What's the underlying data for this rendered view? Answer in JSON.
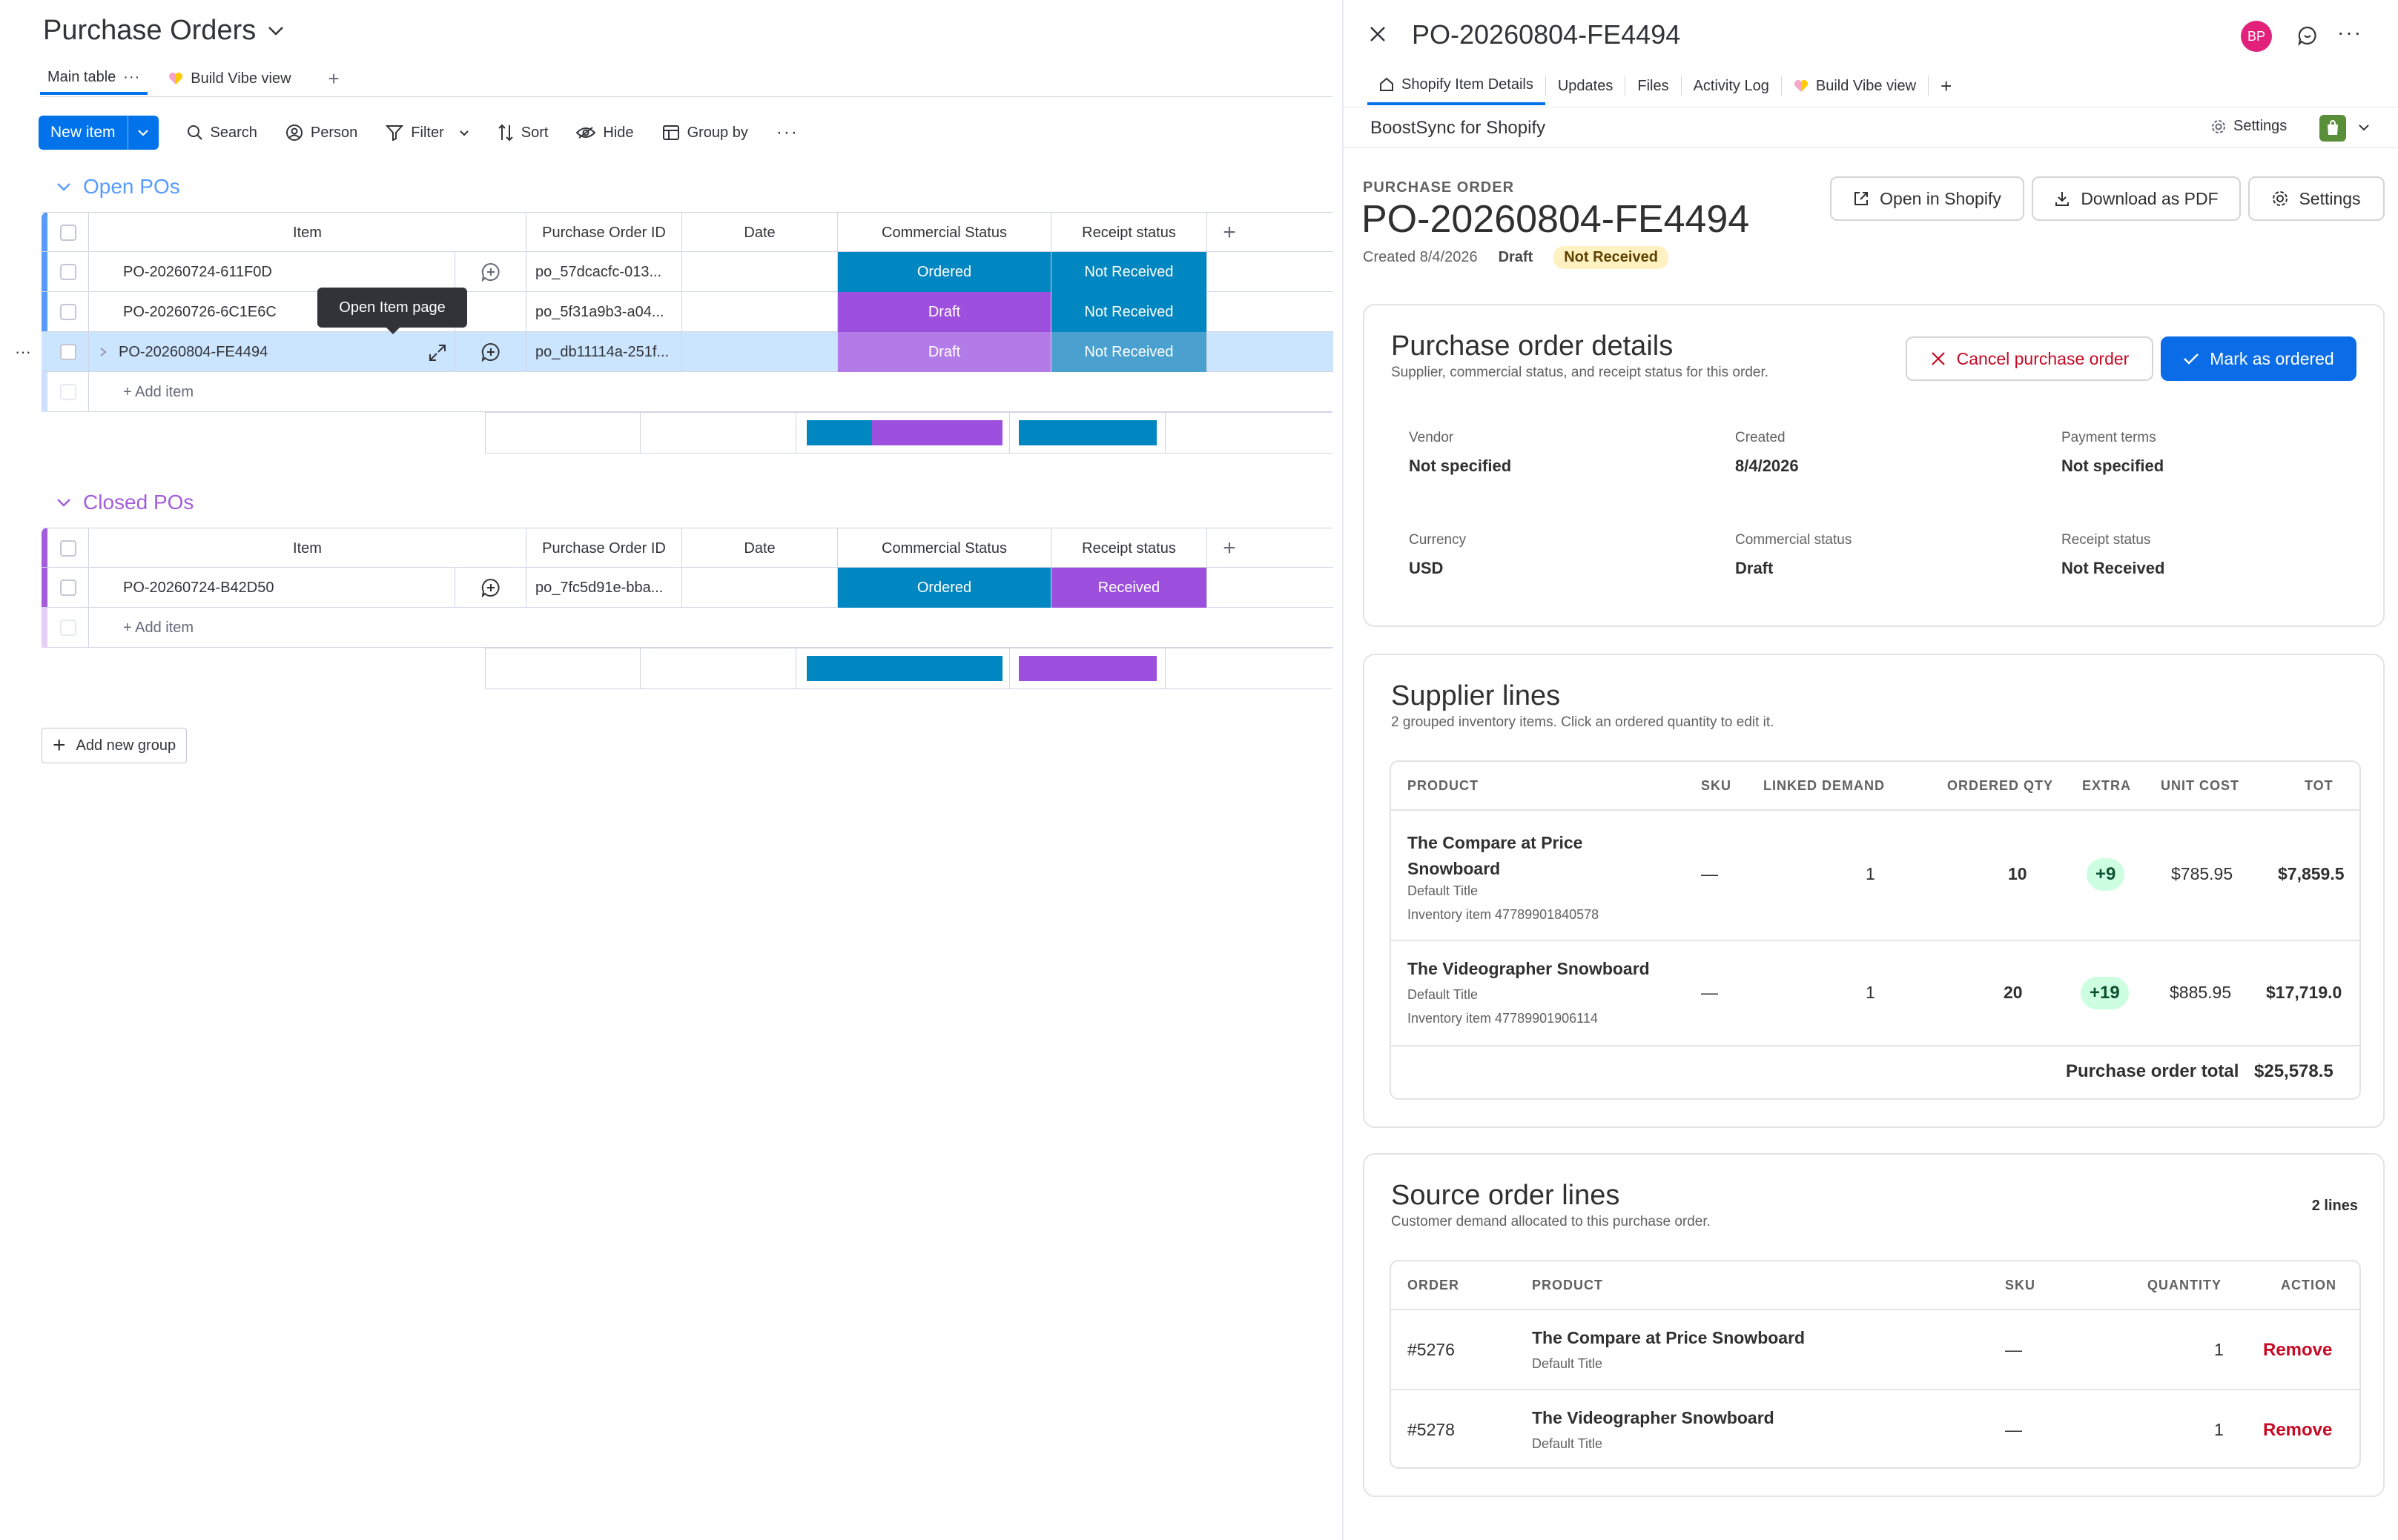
{
  "board": {
    "title": "Purchase Orders",
    "views": [
      {
        "label": "Main table"
      },
      {
        "label": "Build Vibe view"
      }
    ],
    "toolbar": {
      "new_item": "New item",
      "search": "Search",
      "person": "Person",
      "filter": "Filter",
      "sort": "Sort",
      "hide": "Hide",
      "group_by": "Group by"
    },
    "columns": [
      "Item",
      "Purchase Order ID",
      "Date",
      "Commercial Status",
      "Receipt status"
    ],
    "add_item": "+ Add item",
    "add_new_group": "Add new group",
    "tooltip": "Open Item page",
    "groups": [
      {
        "title": "Open POs",
        "color": "#579bfc",
        "rows": [
          {
            "item": "PO-20260724-611F0D",
            "po_id": "po_57dcacfc-013...",
            "date": "",
            "commercial": "Ordered",
            "receipt": "Not Received"
          },
          {
            "item": "PO-20260726-6C1E6C",
            "po_id": "po_5f31a9b3-a04...",
            "date": "",
            "commercial": "Draft",
            "receipt": "Not Received"
          },
          {
            "item": "PO-20260804-FE4494",
            "po_id": "po_db11114a-251f...",
            "date": "",
            "commercial": "Draft",
            "receipt": "Not Received"
          }
        ]
      },
      {
        "title": "Closed POs",
        "color": "#a25ddc",
        "rows": [
          {
            "item": "PO-20260724-B42D50",
            "po_id": "po_7fc5d91e-bba...",
            "date": "",
            "commercial": "Ordered",
            "receipt": "Received"
          }
        ]
      }
    ],
    "status_colors": {
      "ordered": "#0086c0",
      "draft": "#9d50dd",
      "not_received": "#0086c0",
      "received": "#9d50dd"
    }
  },
  "panel": {
    "title": "PO-20260804-FE4494",
    "avatar": "BP",
    "tabs": [
      {
        "label": "Shopify Item Details"
      },
      {
        "label": "Updates"
      },
      {
        "label": "Files"
      },
      {
        "label": "Activity Log"
      },
      {
        "label": "Build Vibe view"
      }
    ],
    "app_name": "BoostSync for Shopify",
    "app_settings": "Settings",
    "po_eyebrow": "PURCHASE ORDER",
    "po_number": "PO-20260804-FE4494",
    "created_line": "Created 8/4/2026",
    "draft_badge": "Draft",
    "receipt_badge": "Not Received",
    "actions": {
      "open_shopify": "Open in Shopify",
      "download_pdf": "Download as PDF",
      "settings": "Settings"
    },
    "details": {
      "title": "Purchase order details",
      "subtitle": "Supplier, commercial status, and receipt status for this order.",
      "cancel": "Cancel purchase order",
      "mark_ordered": "Mark as ordered",
      "fields": [
        {
          "label": "Vendor",
          "value": "Not specified"
        },
        {
          "label": "Created",
          "value": "8/4/2026"
        },
        {
          "label": "Payment terms",
          "value": "Not specified"
        },
        {
          "label": "Currency",
          "value": "USD"
        },
        {
          "label": "Commercial status",
          "value": "Draft"
        },
        {
          "label": "Receipt status",
          "value": "Not Received"
        }
      ]
    },
    "supplier": {
      "title": "Supplier lines",
      "subtitle": "2 grouped inventory items. Click an ordered quantity to edit it.",
      "headers": [
        "PRODUCT",
        "SKU",
        "LINKED DEMAND",
        "ORDERED QTY",
        "EXTRA",
        "UNIT COST",
        "TOT"
      ],
      "lines": [
        {
          "name1": "The Compare at Price",
          "name2": "Snowboard",
          "variant": "Default Title",
          "inventory": "Inventory item 47789901840578",
          "sku": "—",
          "linked": "1",
          "ordered": "10",
          "extra": "+9",
          "unit_cost": "$785.95",
          "total": "$7,859.5"
        },
        {
          "name1": "The Videographer Snowboard",
          "name2": "",
          "variant": "Default Title",
          "inventory": "Inventory item 47789901906114",
          "sku": "—",
          "linked": "1",
          "ordered": "20",
          "extra": "+19",
          "unit_cost": "$885.95",
          "total": "$17,719.0"
        }
      ],
      "total_label": "Purchase order total",
      "total_value": "$25,578.5"
    },
    "source": {
      "title": "Source order lines",
      "subtitle": "Customer demand allocated to this purchase order.",
      "count": "2 lines",
      "headers": [
        "ORDER",
        "PRODUCT",
        "SKU",
        "QUANTITY",
        "ACTION"
      ],
      "lines": [
        {
          "order": "#5276",
          "product": "The Compare at Price Snowboard",
          "variant": "Default Title",
          "sku": "—",
          "qty": "1",
          "action": "Remove"
        },
        {
          "order": "#5278",
          "product": "The Videographer Snowboard",
          "variant": "Default Title",
          "sku": "—",
          "qty": "1",
          "action": "Remove"
        }
      ]
    }
  }
}
